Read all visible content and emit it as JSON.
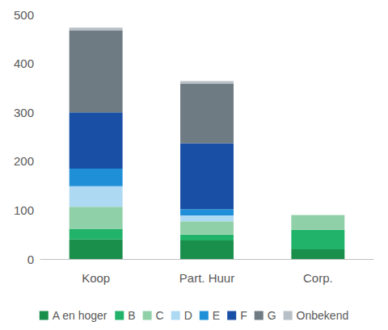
{
  "chart_data": {
    "type": "bar",
    "stacked": true,
    "grid": false,
    "legend": "bottom",
    "categories": [
      "Koop",
      "Part. Huur",
      "Corp."
    ],
    "ylim": [
      0,
      500
    ],
    "yticks": [
      0,
      100,
      200,
      300,
      400,
      500
    ],
    "series": [
      {
        "name": "A en hoger",
        "color": "#1a8f4c",
        "values": [
          40,
          38,
          20
        ]
      },
      {
        "name": "B",
        "color": "#22b36a",
        "values": [
          22,
          12,
          40
        ]
      },
      {
        "name": "C",
        "color": "#90d0a8",
        "values": [
          45,
          27,
          30
        ]
      },
      {
        "name": "D",
        "color": "#aed9f3",
        "values": [
          42,
          12,
          0
        ]
      },
      {
        "name": "E",
        "color": "#1f8fd8",
        "values": [
          36,
          13,
          0
        ]
      },
      {
        "name": "F",
        "color": "#1a4fa6",
        "values": [
          115,
          135,
          0
        ]
      },
      {
        "name": "G",
        "color": "#6e7b83",
        "values": [
          168,
          122,
          0
        ]
      },
      {
        "name": "Onbekend",
        "color": "#b7c0c6",
        "values": [
          5,
          5,
          0
        ]
      }
    ]
  }
}
